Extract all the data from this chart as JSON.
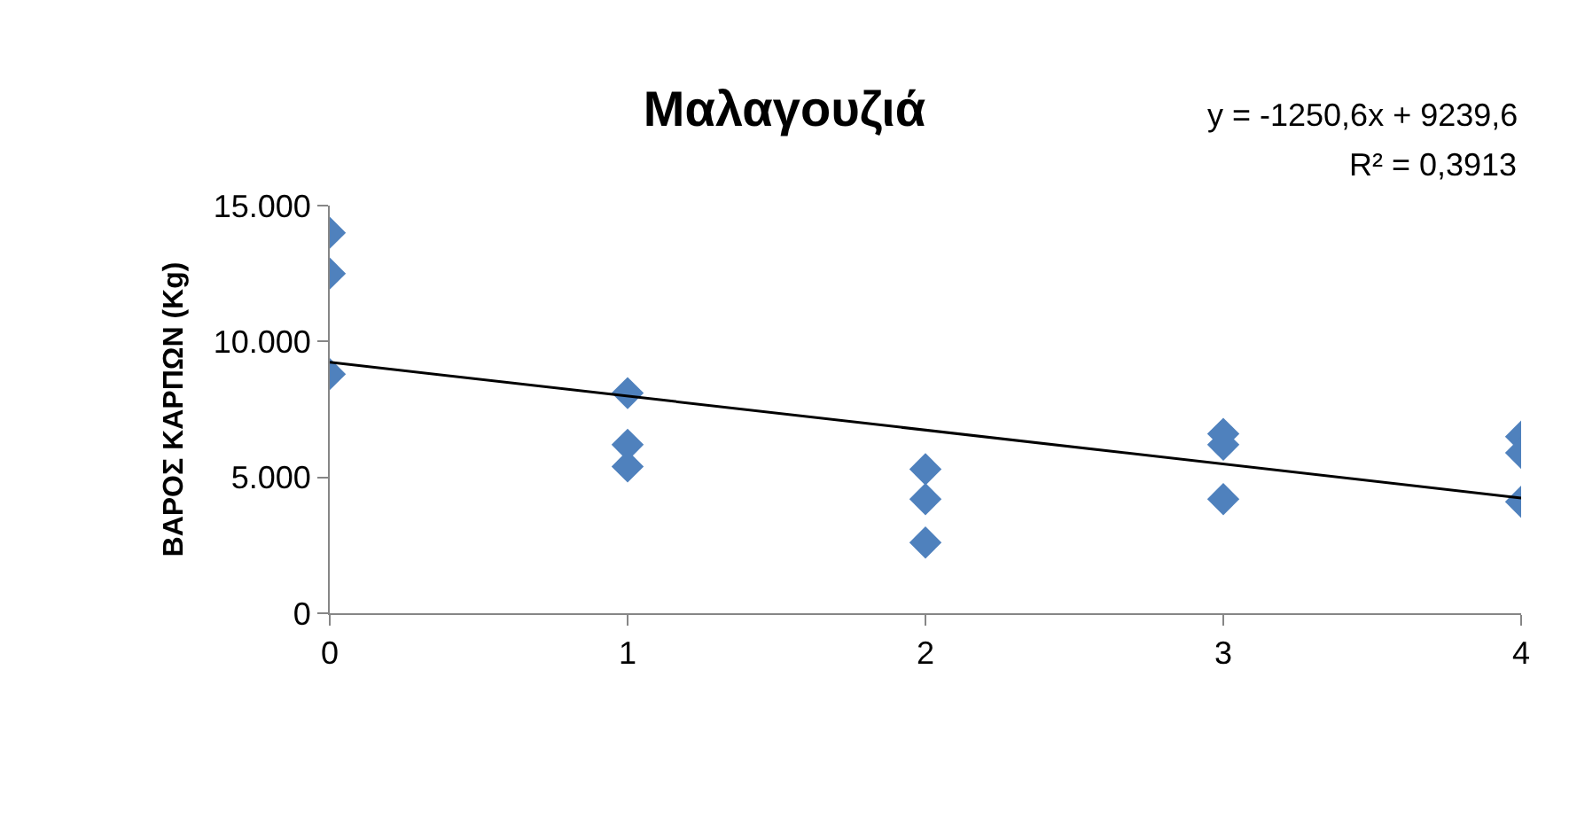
{
  "chart_data": {
    "type": "scatter",
    "title": "Μαλαγουζιά",
    "ylabel": "ΒΑΡΟΣ ΚΑΡΠΩΝ (Kg)",
    "annotations": [
      "y = -1250,6x + 9239,6",
      "R² = 0,3913"
    ],
    "series": [
      {
        "type": "scatter",
        "color": "#4f81bd",
        "marker": "diamond",
        "x": [
          0,
          0,
          0,
          1,
          1,
          1,
          2,
          2,
          2,
          3,
          3,
          3,
          4,
          4,
          4
        ],
        "values": [
          14000,
          12500,
          8800,
          8100,
          6200,
          5400,
          5300,
          4200,
          2600,
          6600,
          6200,
          4200,
          6500,
          5900,
          4100
        ]
      },
      {
        "type": "line",
        "color": "#000000",
        "line_style": "solid",
        "marker": "none",
        "x": [
          0,
          4
        ],
        "values": [
          9240,
          4240
        ]
      }
    ],
    "xlim": [
      0,
      4
    ],
    "xticks": [
      0,
      1,
      2,
      3,
      4
    ],
    "ylim": [
      0,
      15000
    ],
    "yticks": [
      0,
      {
        "value": 5000,
        "label": "5.000"
      },
      {
        "value": 10000,
        "label": "10.000"
      },
      {
        "value": 15000,
        "label": "15.000"
      }
    ],
    "grid": false
  }
}
